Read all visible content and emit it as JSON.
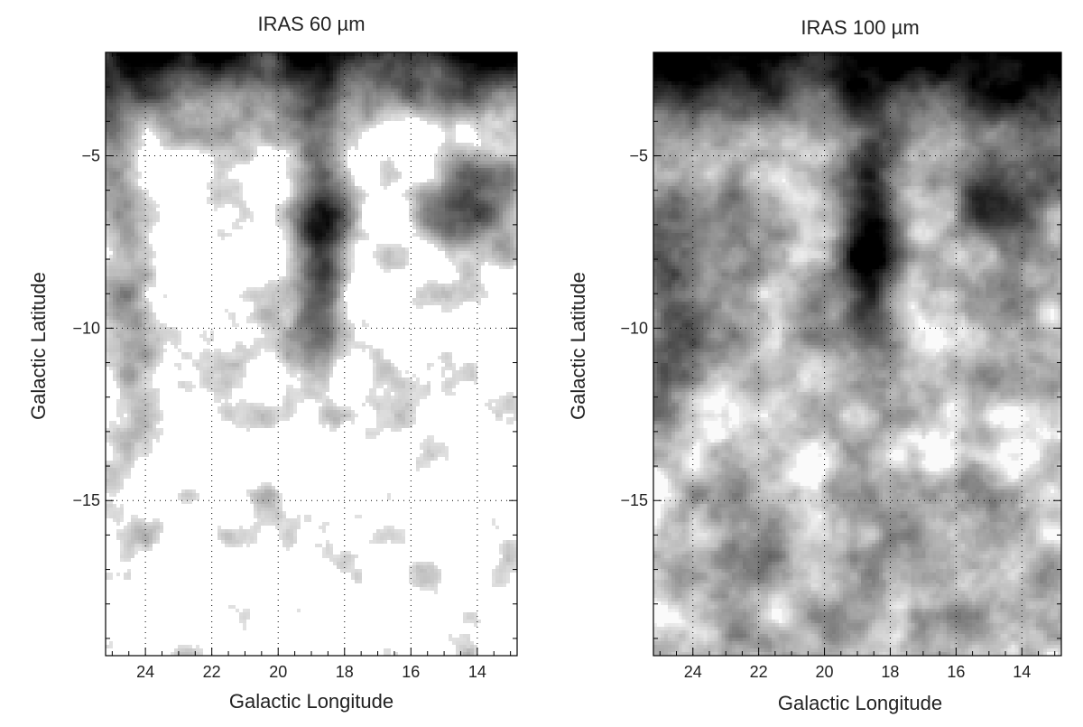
{
  "panels": [
    {
      "title": "IRAS 60 µm",
      "xlabel": "Galactic Longitude",
      "ylabel": "Galactic Latitude",
      "xlim": [
        25.2,
        12.8
      ],
      "ylim": [
        -19.5,
        -2
      ],
      "xticks": [
        24,
        22,
        20,
        18,
        16,
        14
      ],
      "yticks": [
        -5,
        -10,
        -15
      ],
      "grid": true,
      "map_style": "60um"
    },
    {
      "title": "IRAS 100 µm",
      "xlabel": "Galactic Longitude",
      "ylabel": "Galactic Latitude",
      "xlim": [
        25.2,
        12.8
      ],
      "ylim": [
        -19.5,
        -2
      ],
      "xticks": [
        24,
        22,
        20,
        18,
        16,
        14
      ],
      "yticks": [
        -5,
        -10,
        -15
      ],
      "grid": true,
      "map_style": "100um"
    }
  ]
}
